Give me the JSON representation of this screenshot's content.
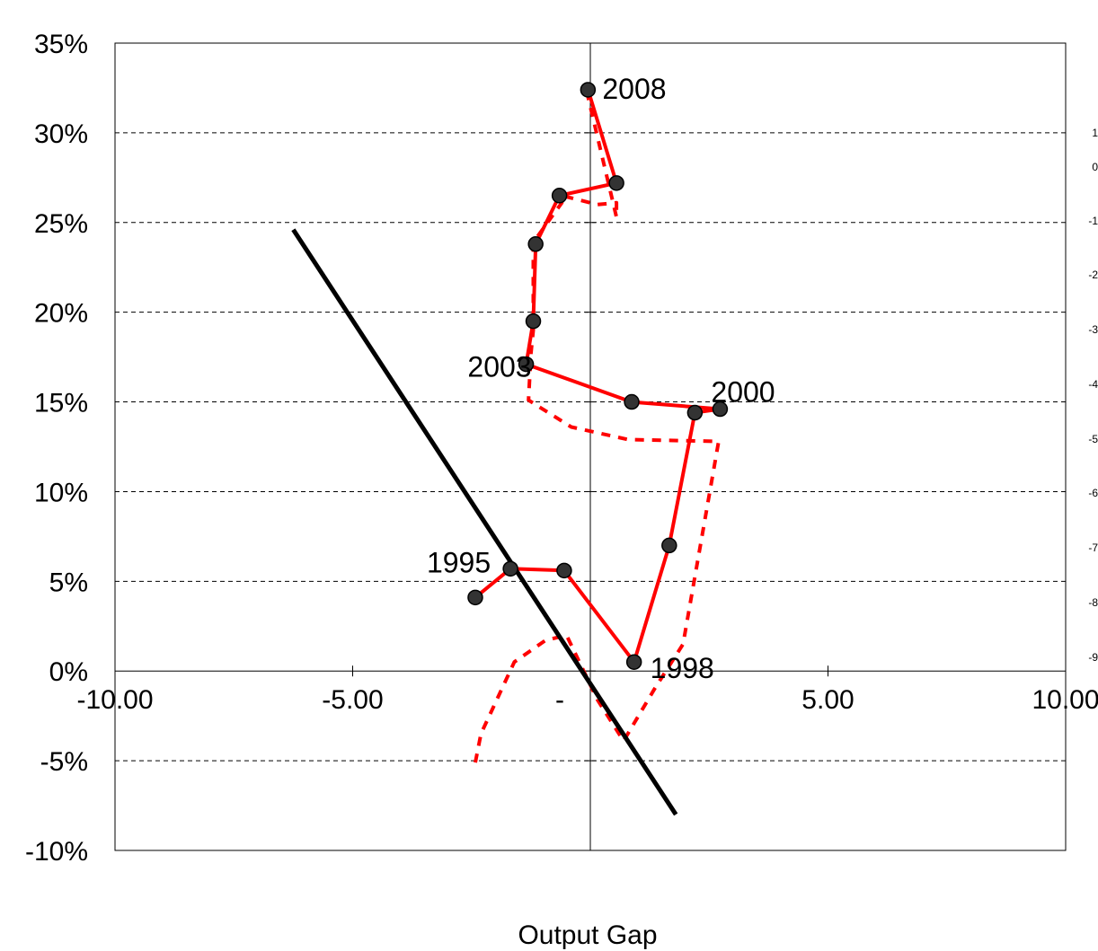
{
  "chart_data": {
    "type": "scatter",
    "title": "",
    "xlabel": "Output Gap",
    "ylabel": "",
    "xlim": [
      -10,
      10
    ],
    "ylim": [
      -10,
      35
    ],
    "grid": "horizontal dashed",
    "x_ticks": [
      {
        "value": -10,
        "label": "-10.00"
      },
      {
        "value": -5,
        "label": "-5.00"
      },
      {
        "value": 0,
        "label": "-"
      },
      {
        "value": 5,
        "label": "5.00"
      },
      {
        "value": 10,
        "label": "10.00"
      }
    ],
    "y_ticks": [
      {
        "value": 35,
        "label": "35%"
      },
      {
        "value": 30,
        "label": "30%"
      },
      {
        "value": 25,
        "label": "25%"
      },
      {
        "value": 20,
        "label": "20%"
      },
      {
        "value": 15,
        "label": "15%"
      },
      {
        "value": 10,
        "label": "10%"
      },
      {
        "value": 5,
        "label": "5%"
      },
      {
        "value": 0,
        "label": "0%"
      },
      {
        "value": -5,
        "label": "-5%"
      },
      {
        "value": -10,
        "label": "-10%"
      }
    ],
    "series": [
      {
        "style": "solid-red-markers",
        "color": "#ff0000",
        "marker_color": "#333333",
        "x": [
          -2.42,
          -1.68,
          -0.55,
          0.92,
          1.66,
          2.2,
          2.73,
          0.87,
          -1.35,
          -1.2,
          -1.15,
          -0.65,
          0.55,
          -0.05
        ],
        "y": [
          4.1,
          5.7,
          5.6,
          0.5,
          7.0,
          14.4,
          14.6,
          15.0,
          17.1,
          19.5,
          23.8,
          26.5,
          27.2,
          32.4
        ]
      },
      {
        "style": "dashed-red",
        "color": "#ff0000",
        "x": [
          -2.42,
          -2.3,
          -1.6,
          -0.95,
          -0.5,
          0.15,
          0.7,
          1.35,
          1.95,
          2.7,
          0.8,
          -0.4,
          -1.3,
          -1.25,
          -1.2,
          -1.2,
          -0.6,
          -0.6,
          0.15,
          0.55,
          0.55,
          -0.05
        ],
        "y": [
          -5.1,
          -3.5,
          0.5,
          1.7,
          2.0,
          -1.6,
          -3.9,
          -1.0,
          1.5,
          12.8,
          12.9,
          13.6,
          15.1,
          17.7,
          19.0,
          23.9,
          26.1,
          26.5,
          26.0,
          26.1,
          25.3,
          32.0
        ]
      },
      {
        "style": "solid-black",
        "color": "#000000",
        "x": [
          -6.25,
          1.8
        ],
        "y": [
          24.6,
          -8.0
        ]
      }
    ],
    "point_labels": [
      {
        "text": "2008",
        "x": -0.05,
        "y": 32.4
      },
      {
        "text": "2003",
        "x": -1.35,
        "y": 17.1
      },
      {
        "text": "2000",
        "x": 2.73,
        "y": 14.6
      },
      {
        "text": "1995",
        "x": -1.68,
        "y": 5.7
      },
      {
        "text": "1998",
        "x": 0.92,
        "y": 0.5
      }
    ],
    "right_axis_fragments": [
      "1",
      "0",
      "-1",
      "-2",
      "-3",
      "-4",
      "-5",
      "-6",
      "-7",
      "-8",
      "-9"
    ]
  }
}
